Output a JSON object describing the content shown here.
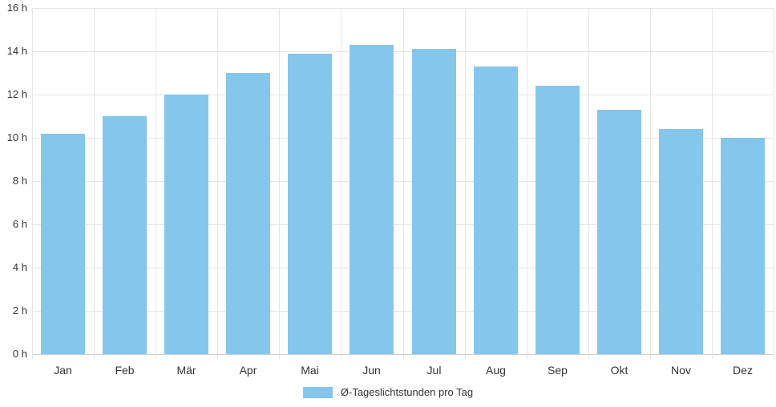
{
  "colors": {
    "bar_fill": "#85C6EC",
    "gridline": "#e6e6e6",
    "axis_line": "#cfcfcf",
    "label_text": "#333333",
    "background": "#ffffff"
  },
  "chart_data": {
    "type": "bar",
    "title": "",
    "xlabel": "",
    "ylabel": "",
    "categories": [
      "Jan",
      "Feb",
      "Mär",
      "Apr",
      "Mai",
      "Jun",
      "Jul",
      "Aug",
      "Sep",
      "Okt",
      "Nov",
      "Dez"
    ],
    "series": [
      {
        "name": "Ø-Tageslichtstunden pro Tag",
        "values": [
          10.2,
          11.0,
          12.0,
          13.0,
          13.9,
          14.3,
          14.1,
          13.3,
          12.4,
          11.3,
          10.4,
          10.0
        ]
      }
    ],
    "ylim": [
      0,
      16
    ],
    "ytick_step": 2,
    "ytick_labels": [
      "0 h",
      "2 h",
      "4 h",
      "6 h",
      "8 h",
      "10 h",
      "12 h",
      "14 h",
      "16 h"
    ],
    "grid": "on",
    "legend_position": "bottom"
  },
  "legend": {
    "label": "Ø-Tageslichtstunden pro Tag"
  }
}
